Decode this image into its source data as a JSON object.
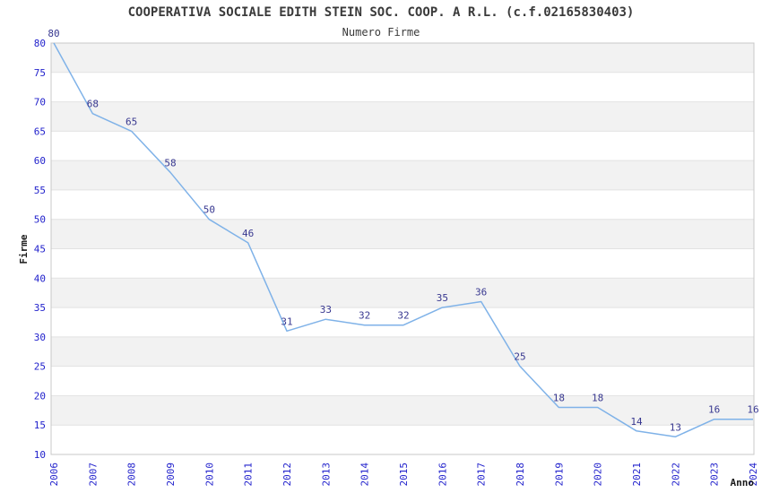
{
  "chart_data": {
    "type": "line",
    "title": "COOPERATIVA SOCIALE EDITH STEIN SOC. COOP. A R.L. (c.f.02165830403)",
    "subtitle": "Numero Firme",
    "xlabel": "Anno",
    "ylabel": "Firme",
    "categories": [
      "2006",
      "2007",
      "2008",
      "2009",
      "2010",
      "2011",
      "2012",
      "2013",
      "2014",
      "2015",
      "2016",
      "2017",
      "2018",
      "2019",
      "2020",
      "2021",
      "2022",
      "2023",
      "2024"
    ],
    "values": [
      80,
      68,
      65,
      58,
      50,
      46,
      31,
      33,
      32,
      32,
      35,
      36,
      25,
      18,
      18,
      14,
      13,
      16,
      16
    ],
    "ylim": [
      10,
      80
    ],
    "ytick_step": 5,
    "yticks": [
      10,
      15,
      20,
      25,
      30,
      35,
      40,
      45,
      50,
      55,
      60,
      65,
      70,
      75,
      80
    ],
    "grid": "horizontal gridlines with alternating shaded bands",
    "legend": "none",
    "colors": {
      "line": "#7fb2e8",
      "data_label": "#383890",
      "tick_label": "#2222cc",
      "band": "#f2f2f2",
      "grid": "#e2e2e2",
      "spine": "#c8c8c8",
      "title": "#3a3a3a",
      "axis_title": "#1a1a1a"
    }
  }
}
